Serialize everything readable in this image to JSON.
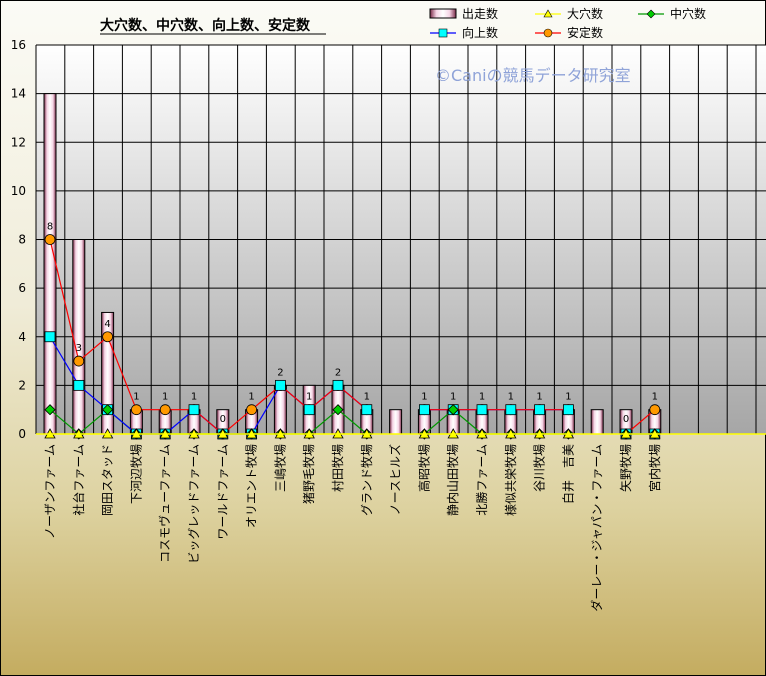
{
  "chart_data": {
    "type": "bar",
    "title": "大穴数、中穴数、向上数、安定数",
    "watermark": "©Caniの競馬データ研究室",
    "ylim": [
      0,
      16
    ],
    "yticks": [
      0,
      2,
      4,
      6,
      8,
      10,
      12,
      14,
      16
    ],
    "grid": true,
    "legend_position": "top-right",
    "categories": [
      "ノーザンファーム",
      "社台ファーム",
      "岡田スタッド",
      "下河辺牧場",
      "コスモヴューファーム",
      "ビッグレッドファーム",
      "ワールドファーム",
      "オリエント牧場",
      "三嶋牧場",
      "猪野毛牧場",
      "村田牧場",
      "グランド牧場",
      "ノースヒルズ",
      "高昭牧場",
      "静内山田牧場",
      "北勝ファーム",
      "様似共栄牧場",
      "谷川牧場",
      "白井　吉美",
      "ダーレー・ジャパン・ファーム",
      "矢野牧場",
      "宮内牧場"
    ],
    "series": [
      {
        "name": "出走数",
        "kind": "bar",
        "color": "#fadcec",
        "values": [
          14,
          8,
          5,
          1,
          1,
          1,
          1,
          1,
          2,
          2,
          2,
          1,
          1,
          1,
          1,
          1,
          1,
          1,
          1,
          1,
          1,
          1
        ]
      },
      {
        "name": "大穴数",
        "kind": "line",
        "color": "#ffff00",
        "marker": "triangle",
        "values": [
          0,
          0,
          0,
          0,
          0,
          0,
          0,
          0,
          0,
          0,
          0,
          0,
          null,
          0,
          0,
          0,
          0,
          0,
          0,
          null,
          0,
          0
        ]
      },
      {
        "name": "中穴数",
        "kind": "line",
        "color": "#009900",
        "marker": "diamond",
        "values": [
          1,
          0,
          1,
          0,
          0,
          0,
          0,
          0,
          0,
          0,
          1,
          0,
          null,
          0,
          1,
          0,
          0,
          0,
          0,
          null,
          0,
          0
        ]
      },
      {
        "name": "向上数",
        "kind": "line",
        "color": "#0000ff",
        "marker": "square",
        "values": [
          4,
          2,
          1,
          0,
          0,
          1,
          0,
          0,
          2,
          1,
          2,
          1,
          null,
          1,
          1,
          1,
          1,
          1,
          1,
          null,
          0,
          0
        ]
      },
      {
        "name": "安定数",
        "kind": "line",
        "color": "#ff0000",
        "marker": "circle",
        "values": [
          8,
          3,
          4,
          1,
          1,
          1,
          0,
          1,
          2,
          1,
          2,
          1,
          null,
          1,
          1,
          1,
          1,
          1,
          1,
          null,
          0,
          1
        ]
      }
    ],
    "data_labels": [
      {
        "index": 0,
        "text": "8"
      },
      {
        "index": 1,
        "text": "3"
      },
      {
        "index": 2,
        "text": "4"
      },
      {
        "index": 3,
        "text": "1"
      },
      {
        "index": 4,
        "text": "1"
      },
      {
        "index": 5,
        "text": "1"
      },
      {
        "index": 6,
        "text": "0"
      },
      {
        "index": 7,
        "text": "1"
      },
      {
        "index": 8,
        "text": "2"
      },
      {
        "index": 9,
        "text": "1"
      },
      {
        "index": 10,
        "text": "2"
      },
      {
        "index": 11,
        "text": "1"
      },
      {
        "index": 13,
        "text": "1"
      },
      {
        "index": 14,
        "text": "1"
      },
      {
        "index": 15,
        "text": "1"
      },
      {
        "index": 16,
        "text": "1"
      },
      {
        "index": 17,
        "text": "1"
      },
      {
        "index": 18,
        "text": "1"
      },
      {
        "index": 20,
        "text": "0"
      },
      {
        "index": 21,
        "text": "1"
      }
    ]
  }
}
